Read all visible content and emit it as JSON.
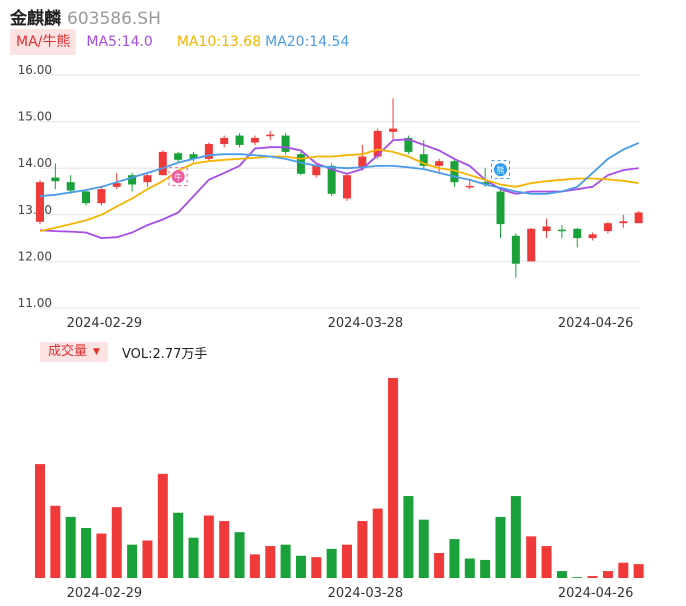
{
  "header": {
    "name": "金麒麟",
    "code": "603586.SH"
  },
  "ma_legend": {
    "toggle_label": "MA/牛熊",
    "ma5": "MA5:14.0",
    "ma10": "MA10:13.68",
    "ma20": "MA20:14.54",
    "colors": {
      "ma5": "#a64de6",
      "ma10": "#f4b400",
      "ma20": "#4a9be8"
    }
  },
  "volume_legend": {
    "toggle_label": "成交量",
    "value": "VOL:2.77万手"
  },
  "markers": {
    "bull": "牛",
    "bear": "熊"
  },
  "colors": {
    "up": "#f03a3a",
    "down": "#1aa13a",
    "grid": "#e6e6e6"
  },
  "chart_data": [
    {
      "type": "candlestick",
      "y_ticks": [
        "16.00",
        "15.00",
        "14.00",
        "13.00",
        "12.00",
        "11.00"
      ],
      "ylim": [
        11,
        16
      ],
      "x_tick_labels": [
        {
          "index": 4,
          "label": "2024-02-29"
        },
        {
          "index": 21,
          "label": "2024-03-28"
        },
        {
          "index": 36,
          "label": "2024-04-26"
        }
      ],
      "candles": [
        {
          "o": 12.85,
          "c": 13.7,
          "h": 13.75,
          "l": 12.8
        },
        {
          "o": 13.8,
          "c": 13.72,
          "h": 14.1,
          "l": 13.55
        },
        {
          "o": 13.7,
          "c": 13.52,
          "h": 13.85,
          "l": 13.45
        },
        {
          "o": 13.5,
          "c": 13.25,
          "h": 13.55,
          "l": 13.2
        },
        {
          "o": 13.25,
          "c": 13.55,
          "h": 13.6,
          "l": 13.2
        },
        {
          "o": 13.6,
          "c": 13.68,
          "h": 13.9,
          "l": 13.55
        },
        {
          "o": 13.85,
          "c": 13.65,
          "h": 13.9,
          "l": 13.5
        },
        {
          "o": 13.7,
          "c": 13.85,
          "h": 13.88,
          "l": 13.6
        },
        {
          "o": 13.85,
          "c": 14.35,
          "h": 14.38,
          "l": 13.85
        },
        {
          "o": 14.32,
          "c": 14.18,
          "h": 14.35,
          "l": 14.1
        },
        {
          "o": 14.3,
          "c": 14.2,
          "h": 14.35,
          "l": 14.15
        },
        {
          "o": 14.2,
          "c": 14.52,
          "h": 14.55,
          "l": 14.15
        },
        {
          "o": 14.52,
          "c": 14.65,
          "h": 14.7,
          "l": 14.45
        },
        {
          "o": 14.7,
          "c": 14.5,
          "h": 14.75,
          "l": 14.45
        },
        {
          "o": 14.55,
          "c": 14.65,
          "h": 14.7,
          "l": 14.5
        },
        {
          "o": 14.7,
          "c": 14.72,
          "h": 14.8,
          "l": 14.6
        },
        {
          "o": 14.7,
          "c": 14.35,
          "h": 14.75,
          "l": 14.3
        },
        {
          "o": 14.3,
          "c": 13.88,
          "h": 14.35,
          "l": 13.85
        },
        {
          "o": 13.85,
          "c": 14.05,
          "h": 14.1,
          "l": 13.8
        },
        {
          "o": 14.05,
          "c": 13.45,
          "h": 14.1,
          "l": 13.4
        },
        {
          "o": 13.35,
          "c": 13.85,
          "h": 13.9,
          "l": 13.3
        },
        {
          "o": 14.0,
          "c": 14.25,
          "h": 14.5,
          "l": 13.95
        },
        {
          "o": 14.25,
          "c": 14.8,
          "h": 14.85,
          "l": 14.2
        },
        {
          "o": 14.78,
          "c": 14.85,
          "h": 15.5,
          "l": 14.6
        },
        {
          "o": 14.65,
          "c": 14.35,
          "h": 14.7,
          "l": 14.3
        },
        {
          "o": 14.3,
          "c": 14.05,
          "h": 14.6,
          "l": 14.0
        },
        {
          "o": 14.05,
          "c": 14.15,
          "h": 14.2,
          "l": 13.9
        },
        {
          "o": 14.15,
          "c": 13.7,
          "h": 14.2,
          "l": 13.6
        },
        {
          "o": 13.6,
          "c": 13.62,
          "h": 13.75,
          "l": 13.55
        },
        {
          "o": 13.7,
          "c": 13.65,
          "h": 14.0,
          "l": 13.6
        },
        {
          "o": 13.5,
          "c": 12.8,
          "h": 13.55,
          "l": 12.5
        },
        {
          "o": 12.55,
          "c": 11.95,
          "h": 12.6,
          "l": 11.65
        },
        {
          "o": 12.0,
          "c": 12.7,
          "h": 12.72,
          "l": 12.0
        },
        {
          "o": 12.65,
          "c": 12.75,
          "h": 12.92,
          "l": 12.5
        },
        {
          "o": 12.68,
          "c": 12.66,
          "h": 12.78,
          "l": 12.5
        },
        {
          "o": 12.7,
          "c": 12.5,
          "h": 12.72,
          "l": 12.3
        },
        {
          "o": 12.5,
          "c": 12.58,
          "h": 12.62,
          "l": 12.45
        },
        {
          "o": 12.65,
          "c": 12.82,
          "h": 12.85,
          "l": 12.6
        },
        {
          "o": 12.82,
          "c": 12.86,
          "h": 13.0,
          "l": 12.72
        },
        {
          "o": 12.82,
          "c": 13.05,
          "h": 13.08,
          "l": 12.82
        }
      ],
      "series": [
        {
          "name": "MA5",
          "values": [
            12.67,
            12.65,
            12.64,
            12.62,
            12.5,
            12.52,
            12.62,
            12.78,
            12.9,
            13.05,
            13.4,
            13.75,
            13.9,
            14.05,
            14.42,
            14.45,
            14.45,
            14.38,
            14.1,
            13.98,
            13.88,
            13.98,
            14.28,
            14.6,
            14.62,
            14.5,
            14.38,
            14.2,
            14.05,
            13.75,
            13.55,
            13.45,
            13.5,
            13.5,
            13.5,
            13.55,
            13.6,
            13.85,
            13.96,
            14.0
          ]
        },
        {
          "name": "MA10",
          "values": [
            12.65,
            12.72,
            12.8,
            12.88,
            13.0,
            13.18,
            13.35,
            13.55,
            13.72,
            13.95,
            14.1,
            14.15,
            14.18,
            14.2,
            14.22,
            14.25,
            14.25,
            14.2,
            14.25,
            14.25,
            14.28,
            14.3,
            14.4,
            14.35,
            14.25,
            14.1,
            14.0,
            13.95,
            13.85,
            13.75,
            13.65,
            13.6,
            13.68,
            13.72,
            13.75,
            13.78,
            13.78,
            13.76,
            13.73,
            13.68
          ]
        },
        {
          "name": "MA20",
          "values": [
            13.4,
            13.43,
            13.48,
            13.53,
            13.6,
            13.7,
            13.8,
            13.9,
            14.0,
            14.12,
            14.2,
            14.28,
            14.3,
            14.3,
            14.28,
            14.25,
            14.2,
            14.12,
            14.05,
            14.02,
            14.0,
            14.02,
            14.05,
            14.05,
            14.02,
            13.98,
            13.9,
            13.82,
            13.75,
            13.65,
            13.58,
            13.5,
            13.45,
            13.45,
            13.5,
            13.6,
            13.9,
            14.2,
            14.4,
            14.54
          ]
        }
      ]
    },
    {
      "type": "bar",
      "title": "成交量",
      "values": [
        4.1,
        2.6,
        2.2,
        1.8,
        1.6,
        2.55,
        1.2,
        1.35,
        3.75,
        2.35,
        1.45,
        2.25,
        2.05,
        1.65,
        0.85,
        1.15,
        1.2,
        0.8,
        0.75,
        1.05,
        1.2,
        2.05,
        2.5,
        7.2,
        2.95,
        2.1,
        0.9,
        1.4,
        0.7,
        0.65,
        2.2,
        2.95,
        1.5,
        1.15,
        0.25,
        0.03,
        0.07,
        0.25,
        0.55,
        0.5
      ],
      "up": [
        true,
        true,
        false,
        false,
        true,
        true,
        false,
        true,
        true,
        false,
        false,
        true,
        true,
        false,
        true,
        true,
        false,
        false,
        true,
        false,
        true,
        true,
        true,
        true,
        false,
        false,
        true,
        false,
        false,
        false,
        false,
        false,
        true,
        true,
        false,
        false,
        true,
        true,
        true,
        true
      ]
    }
  ]
}
